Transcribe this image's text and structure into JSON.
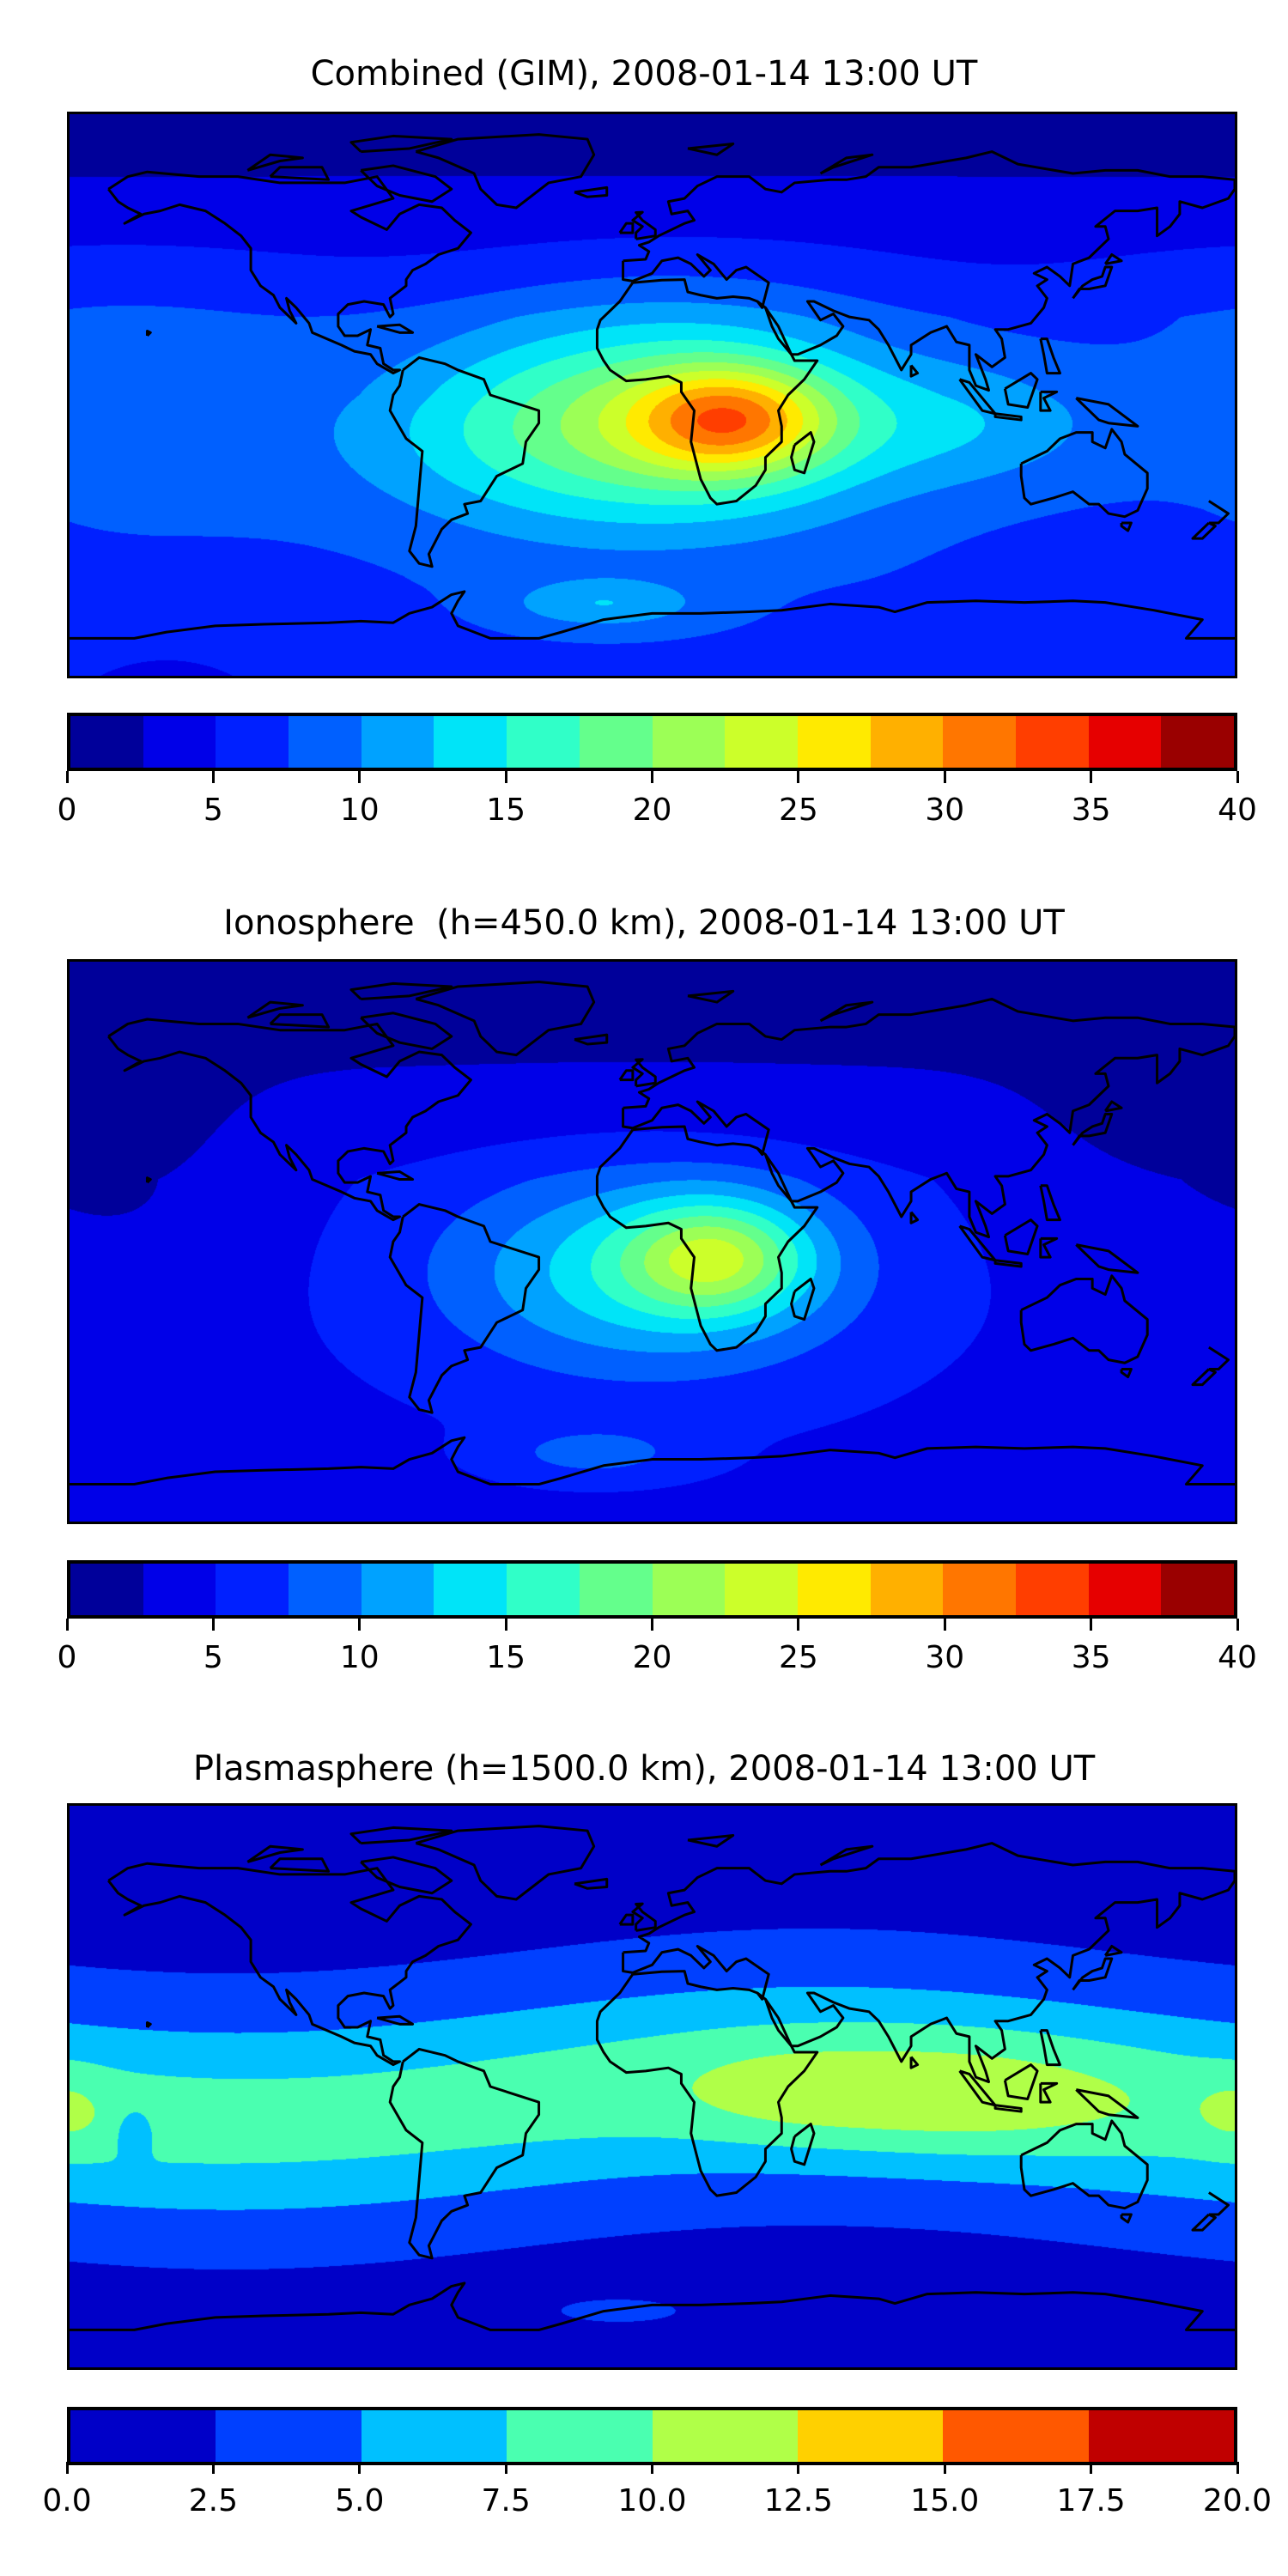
{
  "chart_data": [
    {
      "type": "heatmap",
      "title": "Combined (GIM), 2008-01-14 13:00 UT",
      "projection": "equirectangular world map with coastlines",
      "lon_range": [
        -180,
        180
      ],
      "lat_range": [
        -90,
        90
      ],
      "colorbar": {
        "range": [
          0,
          40
        ],
        "levels": [
          0,
          2.5,
          5,
          7.5,
          10,
          12.5,
          15,
          17.5,
          20,
          22.5,
          25,
          27.5,
          30,
          32.5,
          35,
          37.5,
          40
        ],
        "ticks": [
          "0",
          "5",
          "10",
          "15",
          "20",
          "25",
          "30",
          "35",
          "40"
        ],
        "colors": [
          "#00009a",
          "#0000e8",
          "#0020ff",
          "#0060ff",
          "#00a2ff",
          "#00e4f8",
          "#30ffc8",
          "#64ff8c",
          "#9cff56",
          "#ccff2a",
          "#ffea00",
          "#ffb000",
          "#ff7600",
          "#ff3e00",
          "#e60000",
          "#9a0000"
        ]
      },
      "peak": {
        "approx_value": 34,
        "lon": 25,
        "lat": -8
      }
    },
    {
      "type": "heatmap",
      "title": "Ionosphere  (h=450.0 km), 2008-01-14 13:00 UT",
      "projection": "equirectangular world map with coastlines",
      "lon_range": [
        -180,
        180
      ],
      "lat_range": [
        -90,
        90
      ],
      "colorbar": {
        "range": [
          0,
          40
        ],
        "levels": [
          0,
          2.5,
          5,
          7.5,
          10,
          12.5,
          15,
          17.5,
          20,
          22.5,
          25,
          27.5,
          30,
          32.5,
          35,
          37.5,
          40
        ],
        "ticks": [
          "0",
          "5",
          "10",
          "15",
          "20",
          "25",
          "30",
          "35",
          "40"
        ],
        "colors": [
          "#00009a",
          "#0000e8",
          "#0020ff",
          "#0060ff",
          "#00a2ff",
          "#00e4f8",
          "#30ffc8",
          "#64ff8c",
          "#9cff56",
          "#ccff2a",
          "#ffea00",
          "#ffb000",
          "#ff7600",
          "#ff3e00",
          "#e60000",
          "#9a0000"
        ]
      },
      "peak": {
        "approx_value": 25.5,
        "lon": 20,
        "lat": -5
      }
    },
    {
      "type": "heatmap",
      "title": "Plasmasphere (h=1500.0 km), 2008-01-14 13:00 UT",
      "projection": "equirectangular world map with coastlines",
      "lon_range": [
        -180,
        180
      ],
      "lat_range": [
        -90,
        90
      ],
      "colorbar": {
        "range": [
          0,
          20
        ],
        "levels": [
          0,
          2.5,
          5,
          7.5,
          10,
          12.5,
          15,
          17.5,
          20
        ],
        "ticks": [
          "0.0",
          "2.5",
          "5.0",
          "7.5",
          "10.0",
          "12.5",
          "15.0",
          "17.5",
          "20.0"
        ],
        "colors": [
          "#0000c8",
          "#0040ff",
          "#00c0ff",
          "#4affb0",
          "#b0ff48",
          "#ffd000",
          "#ff5800",
          "#c00000"
        ]
      },
      "peak": {
        "approx_value": 11,
        "lon": 85,
        "lat": -5
      }
    }
  ]
}
